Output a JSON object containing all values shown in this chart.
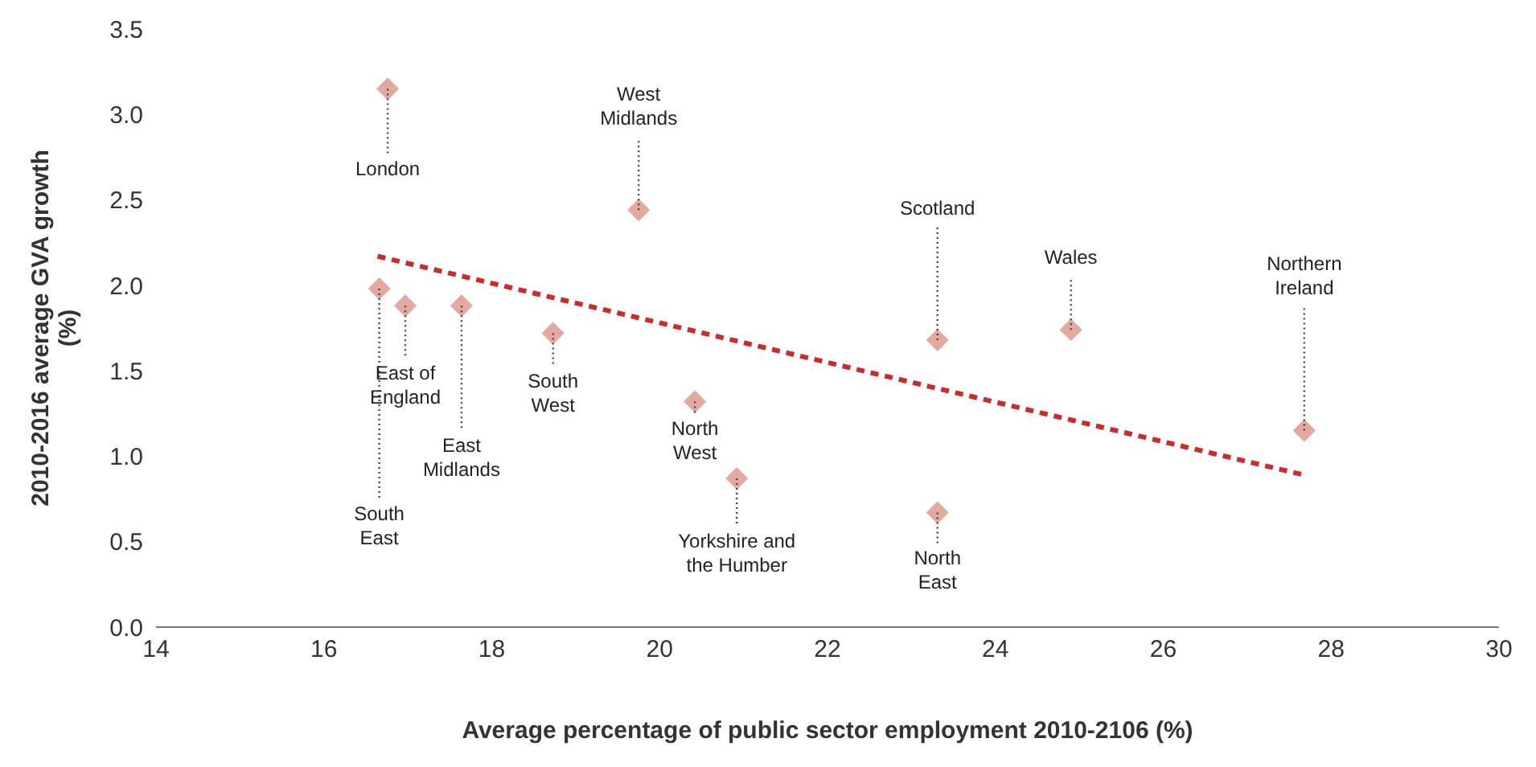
{
  "chart_data": {
    "type": "scatter",
    "xlabel": "Average percentage of public sector employment 2010-2106 (%)",
    "ylabel": "2010-2016 average GVA growth (%)",
    "xlim": [
      14,
      30
    ],
    "xticks": [
      14,
      16,
      18,
      20,
      22,
      24,
      26,
      28,
      30
    ],
    "ylim": [
      0,
      3.5
    ],
    "yticks": [
      {
        "value": 0,
        "label": "0.0"
      },
      {
        "value": 0.5,
        "label": "0.5"
      },
      {
        "value": 1,
        "label": "1.0"
      },
      {
        "value": 1.5,
        "label": "1.5"
      },
      {
        "value": 2,
        "label": "2.0"
      },
      {
        "value": 2.5,
        "label": "2.5"
      },
      {
        "value": 3,
        "label": "3.0"
      },
      {
        "value": 3.5,
        "label": "3.5"
      }
    ],
    "series": [
      {
        "color": "#e3a89e",
        "marker": "diamond",
        "x": [
          16.76,
          16.66,
          16.97,
          17.64,
          18.73,
          19.75,
          20.42,
          20.92,
          23.31,
          23.31,
          24.9,
          27.68
        ],
        "values": [
          3.15,
          1.98,
          1.88,
          1.88,
          1.72,
          2.44,
          1.32,
          0.87,
          1.68,
          0.67,
          1.74,
          1.15
        ]
      },
      {
        "type": "line",
        "color": "#cc2b2b",
        "line_style": "dashed",
        "x": [
          16.64,
          27.68
        ],
        "values": [
          2.17,
          0.89
        ]
      }
    ],
    "annotations": [
      {
        "text": "London",
        "x": 16.76,
        "y": 3.15
      },
      {
        "text": "South East",
        "x": 16.66,
        "y": 1.98
      },
      {
        "text": "East of England",
        "x": 16.97,
        "y": 1.88
      },
      {
        "text": "East Midlands",
        "x": 17.64,
        "y": 1.88
      },
      {
        "text": "South West",
        "x": 18.73,
        "y": 1.72
      },
      {
        "text": "West Midlands",
        "x": 19.75,
        "y": 2.44
      },
      {
        "text": "North West",
        "x": 20.42,
        "y": 1.32
      },
      {
        "text": "Yorkshire and the Humber",
        "x": 20.92,
        "y": 0.87
      },
      {
        "text": "Scotland",
        "x": 23.31,
        "y": 1.68
      },
      {
        "text": "North East",
        "x": 23.31,
        "y": 0.67
      },
      {
        "text": "Wales",
        "x": 24.9,
        "y": 1.74
      },
      {
        "text": "Northern Ireland",
        "x": 27.68,
        "y": 1.15
      }
    ]
  }
}
